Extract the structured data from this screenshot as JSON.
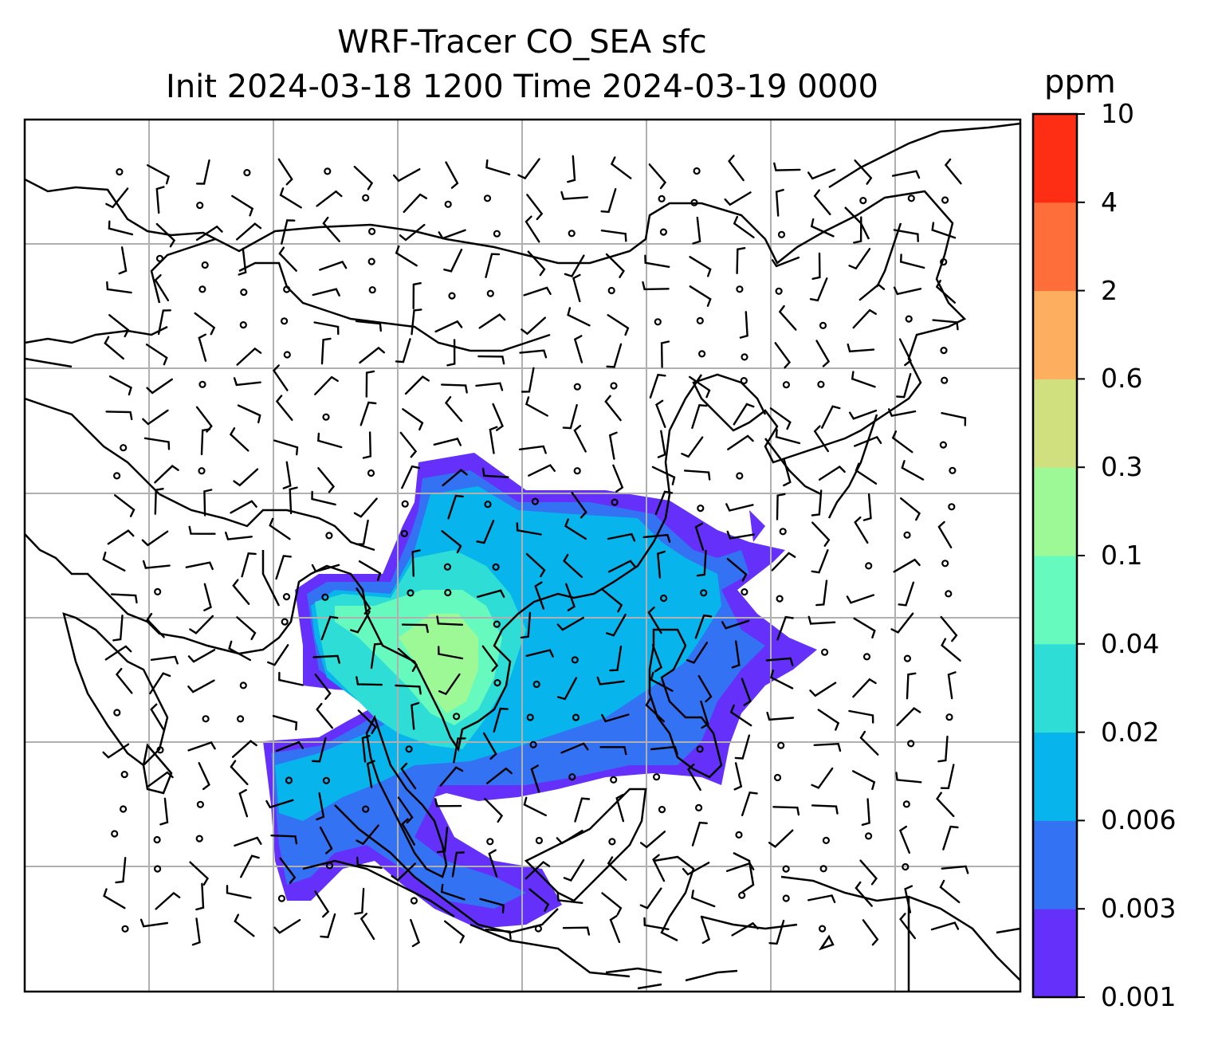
{
  "title": {
    "line1": "WRF-Tracer CO_SEA sfc",
    "line2": "Init 2024-03-18 1200 Time 2024-03-19 0000"
  },
  "colorbar": {
    "unit": "ppm",
    "levels": [
      "0.001",
      "0.003",
      "0.006",
      "0.02",
      "0.04",
      "0.1",
      "0.3",
      "0.6",
      "2",
      "4",
      "10"
    ],
    "colors": [
      "#6430FA",
      "#3472F4",
      "#08B4EC",
      "#2EDDD6",
      "#67FABE",
      "#9CF995",
      "#D0E07F",
      "#FDAE5E",
      "#FE6E3A",
      "#FD2E14"
    ]
  },
  "map": {
    "gridlines": true,
    "overlay": "wind barbs",
    "colors": {
      "border": "#000000",
      "grid": "#b0b0b0"
    }
  }
}
